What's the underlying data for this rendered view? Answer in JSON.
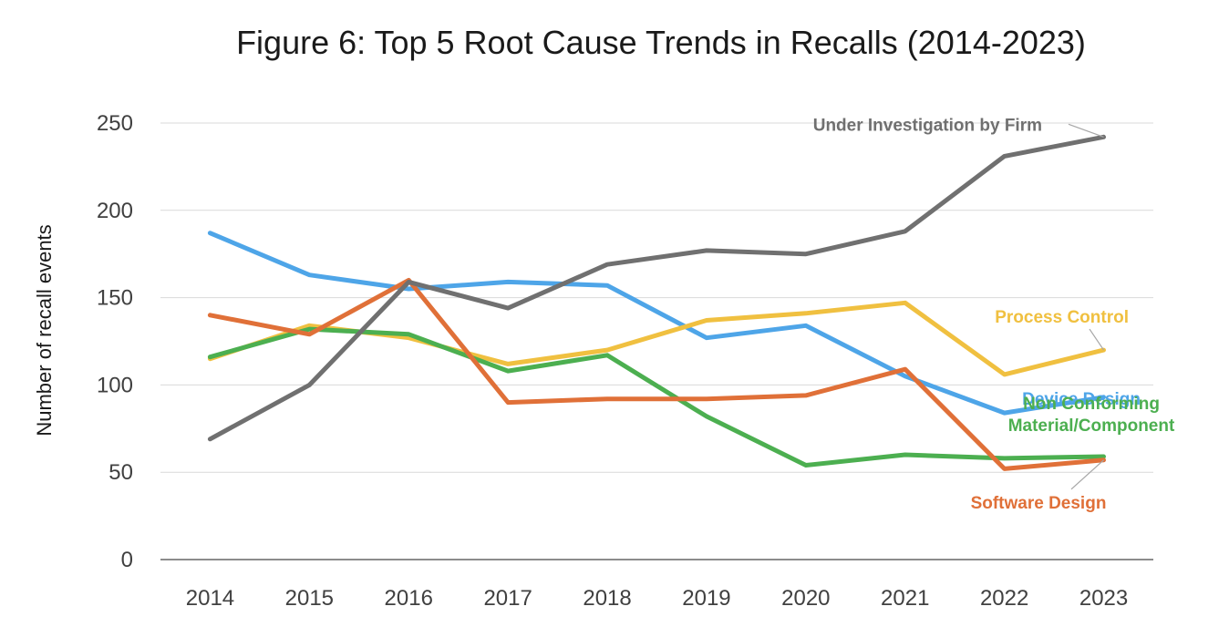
{
  "chart_data": {
    "type": "line",
    "title": "Figure 6: Top 5 Root Cause Trends in Recalls (2014-2023)",
    "xlabel": "",
    "ylabel": "Number of recall events",
    "ylim": [
      0,
      250
    ],
    "yticks": [
      0,
      50,
      100,
      150,
      200,
      250
    ],
    "grid": true,
    "categories": [
      "2014",
      "2015",
      "2016",
      "2017",
      "2018",
      "2019",
      "2020",
      "2021",
      "2022",
      "2023"
    ],
    "series": [
      {
        "name": "Device Design",
        "label_lines": [
          "Device Design"
        ],
        "color": "#4ea5e8",
        "values": [
          187,
          163,
          155,
          159,
          157,
          127,
          134,
          105,
          84,
          93
        ]
      },
      {
        "name": "Process Control",
        "label_lines": [
          "Process Control"
        ],
        "color": "#f0c040",
        "values": [
          115,
          134,
          127,
          112,
          120,
          137,
          141,
          147,
          106,
          120
        ]
      },
      {
        "name": "Non Conforming Material/Component",
        "label_lines": [
          "Non Conforming",
          "Material/Component"
        ],
        "color": "#4caf50",
        "values": [
          116,
          132,
          129,
          108,
          117,
          82,
          54,
          60,
          58,
          59
        ]
      },
      {
        "name": "Software Design",
        "label_lines": [
          "Software Design"
        ],
        "color": "#e07038",
        "values": [
          140,
          129,
          160,
          90,
          92,
          92,
          94,
          109,
          52,
          57
        ]
      },
      {
        "name": "Under Investigation by Firm",
        "label_lines": [
          "Under  Investigation by Firm"
        ],
        "color": "#707070",
        "values": [
          69,
          100,
          159,
          144,
          169,
          177,
          175,
          188,
          231,
          242
        ]
      }
    ]
  }
}
